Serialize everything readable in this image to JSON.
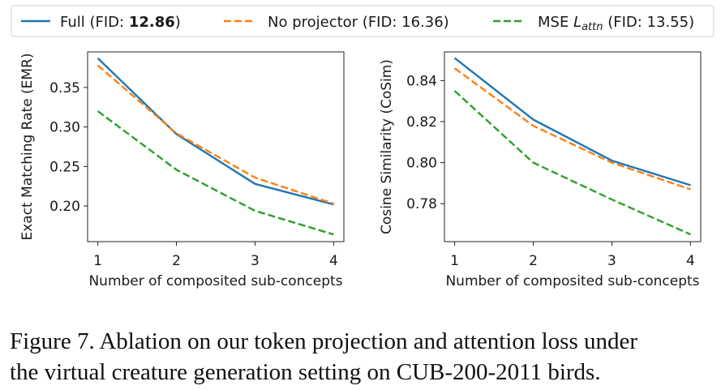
{
  "legend": {
    "entries": [
      {
        "prefix": "Full (FID: ",
        "bold": "12.86",
        "suffix": ")",
        "color": "#1f77b4",
        "dash": "solid"
      },
      {
        "prefix": "No projector (FID: 16.36)",
        "bold": "",
        "suffix": "",
        "color": "#ff7f0e",
        "dash": "dashed"
      },
      {
        "prefix": "MSE ",
        "italic_main": "L",
        "italic_sub": "attn",
        "suffix": " (FID: 13.55)",
        "color": "#2ca02c",
        "dash": "dashed"
      }
    ]
  },
  "chart_data": [
    {
      "type": "line",
      "xlabel": "Number of composited sub-concepts",
      "ylabel": "Exact Matching Rate (EMR)",
      "x": [
        1,
        2,
        3,
        4
      ],
      "xticks": [
        "1",
        "2",
        "3",
        "4"
      ],
      "xlim": [
        0.87,
        4.13
      ],
      "ylim": [
        0.155,
        0.395
      ],
      "yticks": [
        "0.20",
        "0.25",
        "0.30",
        "0.35"
      ],
      "ytick_values": [
        0.2,
        0.25,
        0.3,
        0.35
      ],
      "series": [
        {
          "name": "Full (FID: 12.86)",
          "color": "#1f77b4",
          "dash": "solid",
          "values": [
            0.387,
            0.291,
            0.228,
            0.202
          ]
        },
        {
          "name": "No projector (FID: 16.36)",
          "color": "#ff7f0e",
          "dash": "dashed",
          "values": [
            0.378,
            0.292,
            0.236,
            0.203
          ]
        },
        {
          "name": "MSE L_attn (FID: 13.55)",
          "color": "#2ca02c",
          "dash": "dashed",
          "values": [
            0.32,
            0.246,
            0.194,
            0.164
          ]
        }
      ]
    },
    {
      "type": "line",
      "xlabel": "Number of composited sub-concepts",
      "ylabel": "Cosine Similarity (CoSim)",
      "x": [
        1,
        2,
        3,
        4
      ],
      "xticks": [
        "1",
        "2",
        "3",
        "4"
      ],
      "xlim": [
        0.87,
        4.13
      ],
      "ylim": [
        0.7615,
        0.854
      ],
      "yticks": [
        "0.78",
        "0.80",
        "0.82",
        "0.84"
      ],
      "ytick_values": [
        0.78,
        0.8,
        0.82,
        0.84
      ],
      "series": [
        {
          "name": "Full (FID: 12.86)",
          "color": "#1f77b4",
          "dash": "solid",
          "values": [
            0.851,
            0.821,
            0.801,
            0.789
          ]
        },
        {
          "name": "No projector (FID: 16.36)",
          "color": "#ff7f0e",
          "dash": "dashed",
          "values": [
            0.846,
            0.818,
            0.8,
            0.787
          ]
        },
        {
          "name": "MSE L_attn (FID: 13.55)",
          "color": "#2ca02c",
          "dash": "dashed",
          "values": [
            0.835,
            0.8,
            0.782,
            0.765
          ]
        }
      ]
    }
  ],
  "caption": {
    "line1": "Figure 7. Ablation on our token projection and attention loss under",
    "line2": "the virtual creature generation setting on CUB-200-2011 birds."
  }
}
